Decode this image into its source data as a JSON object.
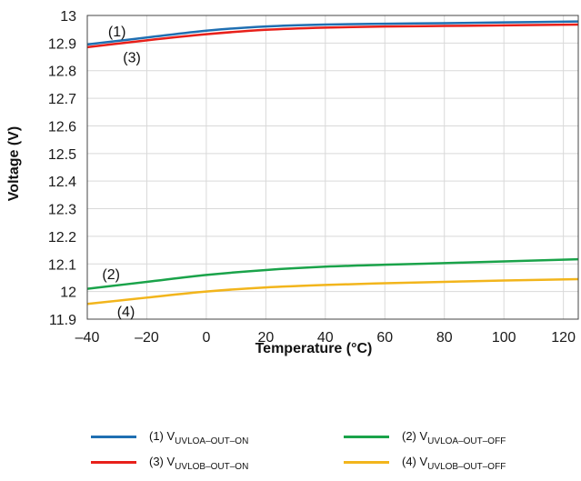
{
  "chart_data": {
    "type": "line",
    "xlabel": "Temperature (°C)",
    "ylabel": "Voltage (V)",
    "xlim": [
      -40,
      125
    ],
    "ylim": [
      11.9,
      13
    ],
    "x_ticks": [
      -40,
      -20,
      0,
      20,
      40,
      60,
      80,
      100,
      120
    ],
    "x_tick_labels": [
      "–40",
      "–20",
      "0",
      "20",
      "40",
      "60",
      "80",
      "100",
      "120"
    ],
    "y_ticks": [
      11.9,
      12,
      12.1,
      12.2,
      12.3,
      12.4,
      12.5,
      12.6,
      12.7,
      12.8,
      12.9,
      13
    ],
    "y_tick_labels": [
      "11.9",
      "12",
      "12.1",
      "12.2",
      "12.3",
      "12.4",
      "12.5",
      "12.6",
      "12.7",
      "12.8",
      "12.9",
      "13"
    ],
    "grid": true,
    "legend_position": "bottom",
    "series": [
      {
        "key": "1",
        "marker": "(1)",
        "name_prefix": "(1) V",
        "name_sub": "UVLOA–OUT–ON",
        "color": "#1f6fb2",
        "x": [
          -40,
          -20,
          0,
          20,
          40,
          60,
          80,
          100,
          125
        ],
        "y": [
          12.895,
          12.92,
          12.945,
          12.96,
          12.967,
          12.97,
          12.972,
          12.975,
          12.978
        ]
      },
      {
        "key": "2",
        "marker": "(2)",
        "name_prefix": "(2) V",
        "name_sub": "UVLOA–OUT–OFF",
        "color": "#1aa34a",
        "x": [
          -40,
          -20,
          0,
          20,
          40,
          60,
          80,
          100,
          125
        ],
        "y": [
          12.01,
          12.035,
          12.06,
          12.078,
          12.09,
          12.097,
          12.103,
          12.109,
          12.117
        ]
      },
      {
        "key": "3",
        "marker": "(3)",
        "name_prefix": "(3) V",
        "name_sub": "UVLOB–OUT–ON",
        "color": "#e8201a",
        "x": [
          -40,
          -20,
          0,
          20,
          40,
          60,
          80,
          100,
          125
        ],
        "y": [
          12.885,
          12.91,
          12.932,
          12.948,
          12.956,
          12.96,
          12.962,
          12.964,
          12.967
        ]
      },
      {
        "key": "4",
        "marker": "(4)",
        "name_prefix": "(4) V",
        "name_sub": "UVLOB–OUT–OFF",
        "color": "#f2b51c",
        "x": [
          -40,
          -20,
          0,
          20,
          40,
          60,
          80,
          100,
          125
        ],
        "y": [
          11.955,
          11.978,
          12.0,
          12.015,
          12.024,
          12.03,
          12.035,
          12.04,
          12.045
        ]
      }
    ]
  }
}
